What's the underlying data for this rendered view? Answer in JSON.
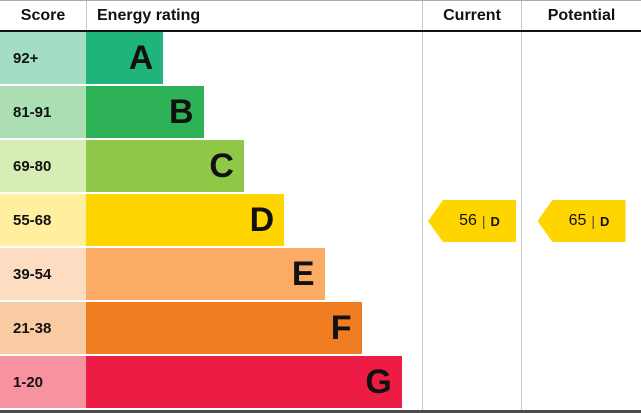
{
  "header": {
    "score": "Score",
    "rating": "Energy rating",
    "current": "Current",
    "potential": "Potential"
  },
  "chart_data": {
    "type": "bar",
    "title": "Energy rating",
    "bands": [
      {
        "letter": "A",
        "score_range": "92+",
        "color": "#1FB57A",
        "tint": "#A3DDC4",
        "bar_pct": 23
      },
      {
        "letter": "B",
        "score_range": "81-91",
        "color": "#2EB258",
        "tint": "#ABDFB3",
        "bar_pct": 35
      },
      {
        "letter": "C",
        "score_range": "69-80",
        "color": "#8FC747",
        "tint": "#D6EDB5",
        "bar_pct": 47
      },
      {
        "letter": "D",
        "score_range": "55-68",
        "color": "#FFD500",
        "tint": "#FFEF9E",
        "bar_pct": 59
      },
      {
        "letter": "E",
        "score_range": "39-54",
        "color": "#FBAB63",
        "tint": "#FDDDC2",
        "bar_pct": 71
      },
      {
        "letter": "F",
        "score_range": "21-38",
        "color": "#F07D22",
        "tint": "#F9CBA2",
        "bar_pct": 82
      },
      {
        "letter": "G",
        "score_range": "1-20",
        "color": "#ED1C44",
        "tint": "#F7939F",
        "bar_pct": 94
      }
    ],
    "current": {
      "value": 56,
      "band": "D",
      "band_index": 3,
      "separator": "|",
      "color": "#FFD500"
    },
    "potential": {
      "value": 65,
      "band": "D",
      "band_index": 3,
      "separator": "|",
      "color": "#FFD500"
    }
  }
}
